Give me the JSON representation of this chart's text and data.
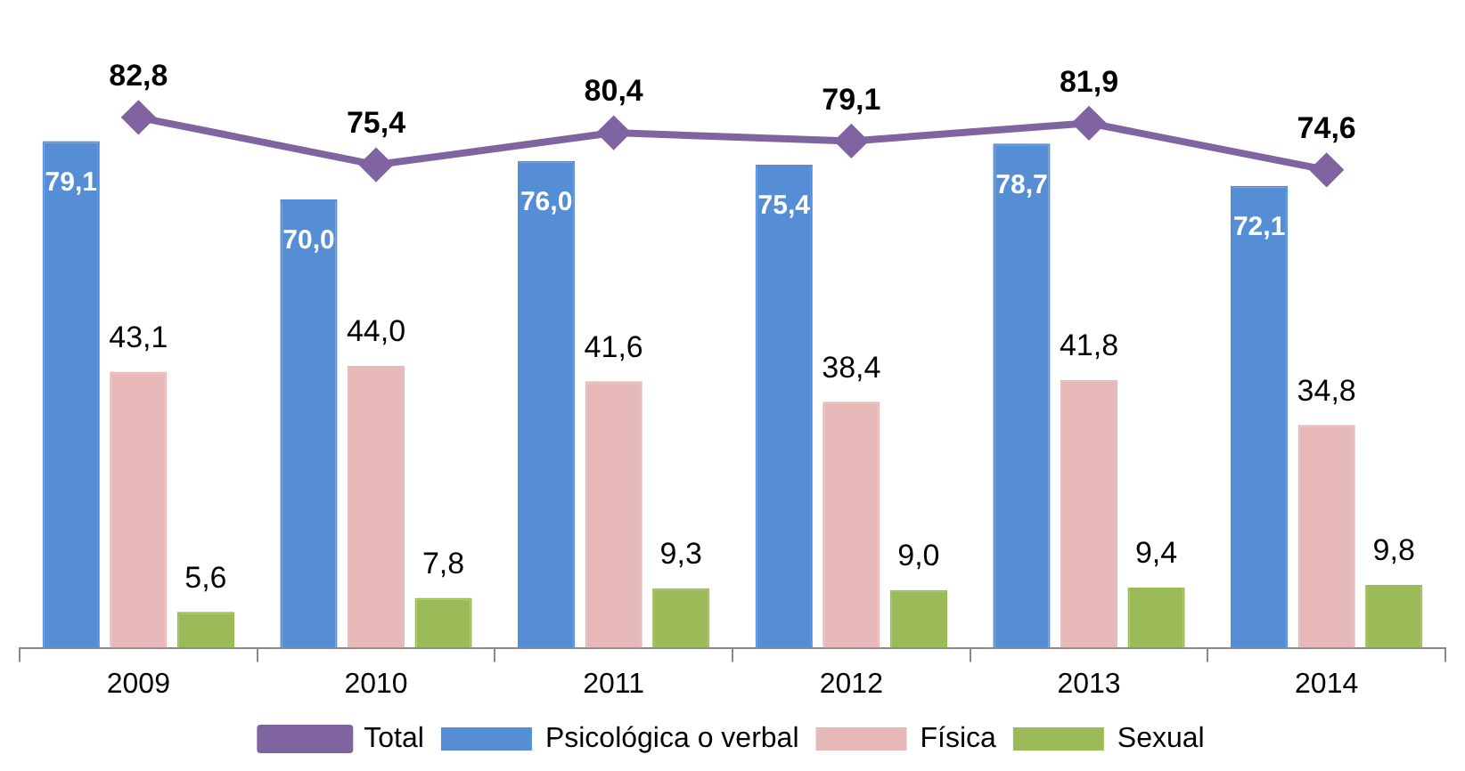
{
  "chart_data": {
    "type": "bar",
    "categories": [
      "2009",
      "2010",
      "2011",
      "2012",
      "2013",
      "2014"
    ],
    "series": [
      {
        "name": "Psicológica o verbal",
        "color": "#558ed5",
        "values": [
          79.1,
          70.0,
          76.0,
          75.4,
          78.7,
          72.1
        ],
        "value_labels": [
          "79,1",
          "70,0",
          "76,0",
          "75,4",
          "78,7",
          "72,1"
        ]
      },
      {
        "name": "Física",
        "color": "#e6b9b8",
        "values": [
          43.1,
          44.0,
          41.6,
          38.4,
          41.8,
          34.8
        ],
        "value_labels": [
          "43,1",
          "44,0",
          "41,6",
          "38,4",
          "41,8",
          "34,8"
        ]
      },
      {
        "name": "Sexual",
        "color": "#9bbb59",
        "values": [
          5.6,
          7.8,
          9.3,
          9.0,
          9.4,
          9.8
        ],
        "value_labels": [
          "5,6",
          "7,8",
          "9,3",
          "9,0",
          "9,4",
          "9,8"
        ]
      },
      {
        "name": "Total",
        "type": "line",
        "color": "#8064a2",
        "marker": "diamond",
        "values": [
          82.8,
          75.4,
          80.4,
          79.1,
          81.9,
          74.6
        ],
        "value_labels": [
          "82,8",
          "75,4",
          "80,4",
          "79,1",
          "81,9",
          "74,6"
        ]
      }
    ],
    "legend": "bottom",
    "grid": false
  }
}
